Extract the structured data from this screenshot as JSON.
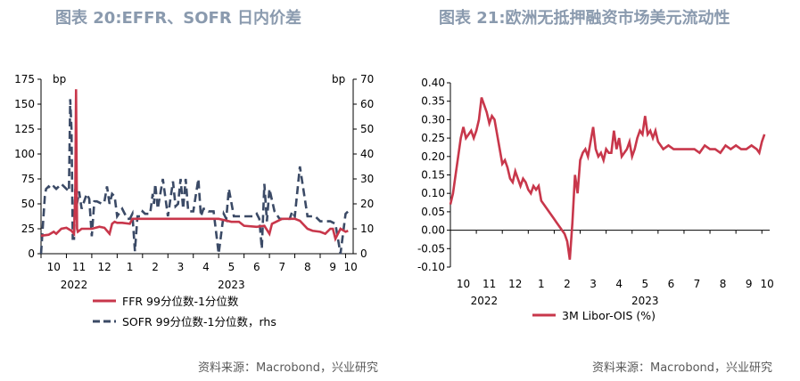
{
  "titles": {
    "left": "图表 20:EFFR、SOFR 日内价差",
    "right": "图表 21:欧洲无抵押融资市场美元流动性"
  },
  "sources": {
    "left": "资料来源：Macrobond，兴业研究",
    "right": "资料来源：Macrobond，兴业研究"
  },
  "colors": {
    "red": "#c8374b",
    "navy": "#3b4a66"
  },
  "chart_data": [
    {
      "type": "line",
      "title": "图表 20:EFFR、SOFR 日内价差",
      "left_unit": "bp",
      "right_unit": "bp",
      "ylim_left": [
        0,
        175
      ],
      "ylim_right": [
        0,
        70
      ],
      "yticks_left": [
        0,
        25,
        50,
        75,
        100,
        125,
        150,
        175
      ],
      "yticks_right": [
        0,
        10,
        20,
        30,
        40,
        50,
        60,
        70
      ],
      "xlim": [
        0,
        12.3
      ],
      "xticks": [
        {
          "pos": 0.5,
          "label": "10"
        },
        {
          "pos": 1.5,
          "label": "11"
        },
        {
          "pos": 2.5,
          "label": "12"
        },
        {
          "pos": 3.5,
          "label": "1"
        },
        {
          "pos": 4.5,
          "label": "2"
        },
        {
          "pos": 5.5,
          "label": "3"
        },
        {
          "pos": 6.5,
          "label": "4"
        },
        {
          "pos": 7.5,
          "label": "5"
        },
        {
          "pos": 8.5,
          "label": "6"
        },
        {
          "pos": 9.5,
          "label": "7"
        },
        {
          "pos": 10.5,
          "label": "8"
        },
        {
          "pos": 11.5,
          "label": "9"
        },
        {
          "pos": 12.2,
          "label": "10"
        }
      ],
      "year_labels": [
        {
          "pos": 1.3,
          "label": "2022"
        },
        {
          "pos": 7.5,
          "label": "2023"
        }
      ],
      "legend": [
        "FFR 99分位数-1分位数",
        "SOFR 99分位数-1分位数，rhs"
      ],
      "series": [
        {
          "name": "FFR 99分位数-1分位数",
          "axis": "left",
          "x": [
            0,
            0.3,
            0.5,
            0.6,
            0.8,
            1.0,
            1.2,
            1.3,
            1.35,
            1.38,
            1.42,
            1.45,
            1.5,
            1.6,
            1.8,
            2.0,
            2.3,
            2.5,
            2.7,
            2.8,
            2.9,
            3.0,
            3.2,
            3.5,
            3.6,
            4.0,
            4.5,
            5.0,
            5.5,
            6.0,
            6.5,
            7.0,
            7.5,
            7.8,
            8.0,
            8.5,
            8.8,
            9.0,
            9.1,
            9.5,
            10.0,
            10.2,
            10.5,
            10.7,
            11.0,
            11.2,
            11.4,
            11.5,
            11.6,
            11.8,
            12.0,
            12.1
          ],
          "values": [
            18,
            19,
            22,
            20,
            25,
            26,
            23,
            20,
            60,
            165,
            25,
            22,
            23,
            25,
            25,
            25,
            27,
            26,
            20,
            30,
            32,
            31,
            31,
            30,
            35,
            35,
            35,
            35,
            35,
            35,
            35,
            35,
            32,
            32,
            28,
            27,
            28,
            20,
            30,
            35,
            35,
            33,
            25,
            23,
            22,
            20,
            25,
            25,
            15,
            25,
            22,
            23
          ]
        },
        {
          "name": "SOFR 99分位数-1分位数，rhs",
          "axis": "right",
          "x": [
            0,
            0.15,
            0.2,
            0.3,
            0.4,
            0.5,
            0.6,
            0.8,
            1.0,
            1.1,
            1.15,
            1.2,
            1.25,
            1.3,
            1.35,
            1.4,
            1.5,
            1.6,
            1.7,
            1.8,
            1.9,
            2.0,
            2.1,
            2.2,
            2.4,
            2.5,
            2.6,
            2.7,
            2.8,
            2.9,
            3.0,
            3.2,
            3.4,
            3.5,
            3.6,
            3.7,
            3.8,
            3.9,
            4.0,
            4.1,
            4.3,
            4.4,
            4.45,
            4.5,
            4.6,
            4.8,
            5.0,
            5.2,
            5.3,
            5.4,
            5.5,
            5.6,
            5.7,
            5.8,
            6.0,
            6.2,
            6.3,
            6.4,
            6.5,
            6.6,
            6.7,
            6.8,
            7.0,
            7.2,
            7.3,
            7.4,
            7.6,
            7.8,
            8.0,
            8.2,
            8.4,
            8.5,
            8.6,
            8.7,
            8.8,
            8.9,
            9.0,
            9.2,
            9.4,
            9.6,
            9.8,
            9.9,
            10.0,
            10.2,
            10.5,
            10.6,
            10.8,
            11.0,
            11.2,
            11.4,
            11.6,
            11.8,
            12.0,
            12.1
          ],
          "values": [
            0,
            23,
            26,
            27,
            26,
            27,
            26,
            28,
            26,
            25,
            62,
            50,
            6,
            6,
            26,
            19,
            25,
            18,
            21,
            24,
            22,
            7,
            21,
            21,
            20,
            21,
            27,
            20,
            24,
            23,
            15,
            18,
            14,
            14,
            16,
            1,
            15,
            15,
            17,
            16,
            16,
            24,
            20,
            28,
            18,
            30,
            15,
            29,
            19,
            20,
            30,
            18,
            30,
            17,
            17,
            30,
            15,
            18,
            18,
            17,
            17,
            17,
            0,
            16,
            14,
            26,
            15,
            15,
            15,
            15,
            15,
            16,
            14,
            2,
            28,
            13,
            26,
            17,
            14,
            14,
            14,
            17,
            15,
            35,
            15,
            15,
            15,
            13,
            13,
            13,
            12,
            0,
            16,
            17
          ]
        }
      ]
    },
    {
      "type": "line",
      "title": "图表 21:欧洲无抵押融资市场美元流动性",
      "ylim": [
        -0.1,
        0.4
      ],
      "yticks": [
        -0.1,
        -0.05,
        0.0,
        0.05,
        0.1,
        0.15,
        0.2,
        0.25,
        0.3,
        0.35,
        0.4
      ],
      "xlim": [
        0,
        12.3
      ],
      "xticks": [
        {
          "pos": 0.5,
          "label": "10"
        },
        {
          "pos": 1.5,
          "label": "11"
        },
        {
          "pos": 2.5,
          "label": "12"
        },
        {
          "pos": 3.5,
          "label": "1"
        },
        {
          "pos": 4.5,
          "label": "2"
        },
        {
          "pos": 5.5,
          "label": "3"
        },
        {
          "pos": 6.5,
          "label": "4"
        },
        {
          "pos": 7.5,
          "label": "5"
        },
        {
          "pos": 8.5,
          "label": "6"
        },
        {
          "pos": 9.5,
          "label": "7"
        },
        {
          "pos": 10.5,
          "label": "8"
        },
        {
          "pos": 11.5,
          "label": "9"
        },
        {
          "pos": 12.2,
          "label": "10"
        }
      ],
      "year_labels": [
        {
          "pos": 1.3,
          "label": "2022"
        },
        {
          "pos": 7.5,
          "label": "2023"
        }
      ],
      "legend": [
        "3M Libor-OIS (%)"
      ],
      "series": [
        {
          "name": "3M Libor-OIS (%)",
          "x": [
            0,
            0.1,
            0.2,
            0.3,
            0.4,
            0.5,
            0.6,
            0.7,
            0.8,
            0.9,
            1.0,
            1.1,
            1.2,
            1.3,
            1.4,
            1.5,
            1.6,
            1.7,
            1.8,
            1.9,
            2.0,
            2.1,
            2.2,
            2.3,
            2.4,
            2.5,
            2.6,
            2.7,
            2.8,
            2.9,
            3.0,
            3.1,
            3.2,
            3.3,
            3.4,
            3.5,
            3.6,
            3.7,
            3.8,
            3.9,
            4.0,
            4.1,
            4.2,
            4.3,
            4.4,
            4.5,
            4.6,
            4.7,
            4.8,
            4.9,
            5.0,
            5.1,
            5.2,
            5.3,
            5.4,
            5.5,
            5.6,
            5.7,
            5.8,
            5.9,
            6.0,
            6.1,
            6.2,
            6.3,
            6.4,
            6.5,
            6.6,
            6.7,
            6.8,
            6.9,
            7.0,
            7.1,
            7.2,
            7.3,
            7.4,
            7.5,
            7.6,
            7.7,
            7.8,
            7.9,
            8.0,
            8.2,
            8.4,
            8.6,
            8.8,
            9.0,
            9.2,
            9.4,
            9.6,
            9.8,
            10.0,
            10.2,
            10.4,
            10.6,
            10.8,
            11.0,
            11.2,
            11.4,
            11.6,
            11.8,
            11.9,
            12.0,
            12.1
          ],
          "values": [
            0.07,
            0.1,
            0.15,
            0.2,
            0.25,
            0.28,
            0.25,
            0.26,
            0.27,
            0.25,
            0.27,
            0.3,
            0.36,
            0.34,
            0.32,
            0.29,
            0.31,
            0.3,
            0.26,
            0.22,
            0.18,
            0.19,
            0.17,
            0.14,
            0.13,
            0.16,
            0.14,
            0.12,
            0.14,
            0.13,
            0.11,
            0.1,
            0.12,
            0.11,
            0.12,
            0.08,
            0.07,
            0.06,
            0.05,
            0.04,
            0.03,
            0.02,
            0.01,
            0.0,
            -0.01,
            -0.03,
            -0.08,
            0.02,
            0.15,
            0.1,
            0.19,
            0.21,
            0.22,
            0.2,
            0.24,
            0.28,
            0.22,
            0.2,
            0.21,
            0.19,
            0.22,
            0.21,
            0.21,
            0.27,
            0.22,
            0.25,
            0.2,
            0.21,
            0.22,
            0.24,
            0.2,
            0.22,
            0.25,
            0.27,
            0.26,
            0.31,
            0.26,
            0.27,
            0.25,
            0.27,
            0.24,
            0.22,
            0.23,
            0.22,
            0.22,
            0.22,
            0.22,
            0.22,
            0.21,
            0.23,
            0.22,
            0.22,
            0.21,
            0.23,
            0.22,
            0.23,
            0.22,
            0.22,
            0.23,
            0.22,
            0.21,
            0.24,
            0.26
          ]
        }
      ]
    }
  ]
}
